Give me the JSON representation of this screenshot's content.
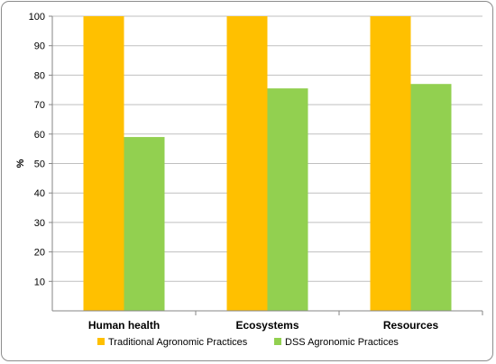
{
  "chart_data": {
    "type": "bar",
    "categories": [
      "Human health",
      "Ecosystems",
      "Resources"
    ],
    "series": [
      {
        "name": "Traditional Agronomic Practices",
        "values": [
          100,
          100,
          100
        ],
        "color": "#ffc000"
      },
      {
        "name": "DSS Agronomic Practices",
        "values": [
          59,
          75.5,
          77
        ],
        "color": "#92d050"
      }
    ],
    "ylabel": "%",
    "xlabel": "",
    "ylim": [
      0,
      100
    ],
    "yticks": [
      10,
      20,
      30,
      40,
      50,
      60,
      70,
      80,
      90,
      100
    ],
    "grid": true,
    "legend": "bottom"
  }
}
